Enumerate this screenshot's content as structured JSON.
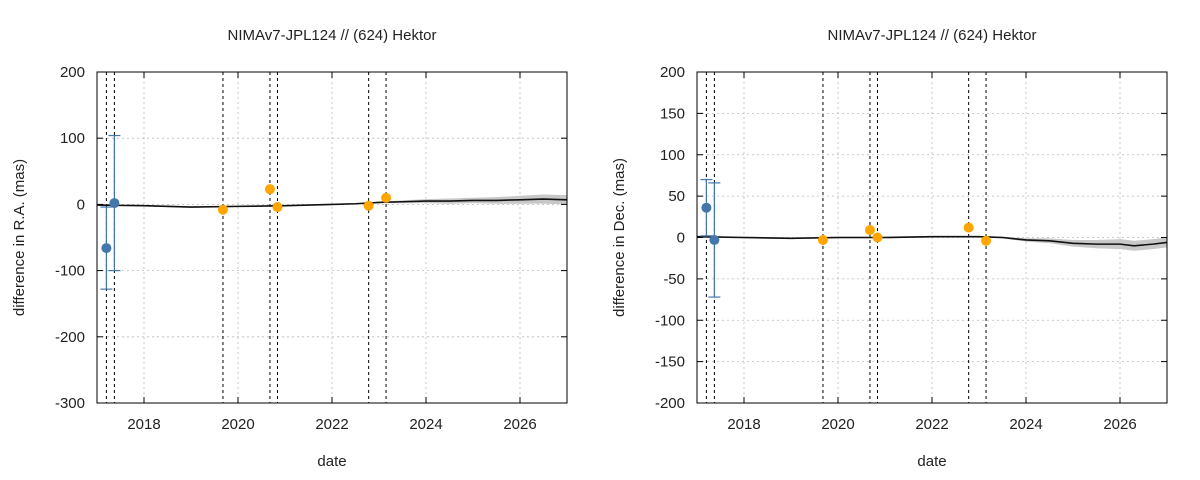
{
  "colors": {
    "text": "#222222",
    "model_line": "#111111",
    "uncertainty_band": "#c8c8c8",
    "grid": "#bbbbbb",
    "gaia_points": "#4477aa",
    "stellar_occultation_points": "#ffa500",
    "event_lines": "#000000"
  },
  "chart_data": [
    {
      "type": "scatter",
      "title": "NIMAv7-JPL124 // (624) Hektor",
      "xlabel": "date",
      "ylabel": "difference in R.A. (mas)",
      "xlim": [
        2017.0,
        2027.0
      ],
      "ylim": [
        -300,
        200
      ],
      "xticks": [
        2018,
        2020,
        2022,
        2024,
        2026
      ],
      "yticks": [
        -300,
        -200,
        -100,
        0,
        100,
        200
      ],
      "grid": true,
      "vertical_event_lines": [
        2017.2,
        2017.37,
        2019.68,
        2020.68,
        2020.84,
        2022.78,
        2023.15
      ],
      "model_curve": {
        "x": [
          2017.0,
          2018.0,
          2019.0,
          2020.0,
          2021.0,
          2022.0,
          2022.5,
          2023.0,
          2023.5,
          2024.0,
          2024.5,
          2025.0,
          2025.5,
          2026.0,
          2026.5,
          2027.0
        ],
        "y": [
          -1,
          -2,
          -4,
          -3,
          -2,
          0,
          1,
          3,
          4,
          5,
          5,
          6,
          6,
          7,
          8,
          7
        ],
        "band": [
          1,
          1,
          1,
          1,
          1,
          1,
          1,
          1,
          2,
          3,
          4,
          4,
          5,
          6,
          7,
          7
        ]
      },
      "series": [
        {
          "x": [
            2017.2,
            2017.37
          ],
          "y": [
            -66,
            2
          ],
          "yerr": [
            62,
            102
          ]
        },
        {
          "x": [
            2019.68,
            2020.68,
            2020.84,
            2022.78,
            2023.15
          ],
          "y": [
            -8,
            23,
            -4,
            -2,
            10
          ]
        }
      ]
    },
    {
      "type": "scatter",
      "title": "NIMAv7-JPL124 // (624) Hektor",
      "xlabel": "date",
      "ylabel": "difference in Dec. (mas)",
      "xlim": [
        2017.0,
        2027.0
      ],
      "ylim": [
        -200,
        200
      ],
      "xticks": [
        2018,
        2020,
        2022,
        2024,
        2026
      ],
      "yticks": [
        -200,
        -150,
        -100,
        -50,
        0,
        50,
        100,
        150,
        200
      ],
      "grid": true,
      "vertical_event_lines": [
        2017.2,
        2017.37,
        2019.68,
        2020.68,
        2020.84,
        2022.78,
        2023.15
      ],
      "model_curve": {
        "x": [
          2017.0,
          2018.0,
          2019.0,
          2020.0,
          2021.0,
          2022.0,
          2023.0,
          2023.5,
          2024.0,
          2024.5,
          2025.0,
          2025.5,
          2026.0,
          2026.3,
          2026.7,
          2027.0
        ],
        "y": [
          1,
          0,
          -1,
          0,
          0,
          1,
          1,
          0,
          -3,
          -4,
          -7,
          -8,
          -8,
          -10,
          -8,
          -6
        ],
        "band": [
          1,
          1,
          1,
          1,
          1,
          1,
          1,
          1,
          2,
          3,
          4,
          5,
          6,
          6,
          6,
          6
        ]
      },
      "series": [
        {
          "x": [
            2017.2,
            2017.37
          ],
          "y": [
            36,
            -3
          ],
          "yerr": [
            34,
            69
          ]
        },
        {
          "x": [
            2019.68,
            2020.68,
            2020.84,
            2022.78,
            2023.15
          ],
          "y": [
            -3,
            9,
            0,
            12,
            -4
          ]
        }
      ]
    }
  ]
}
